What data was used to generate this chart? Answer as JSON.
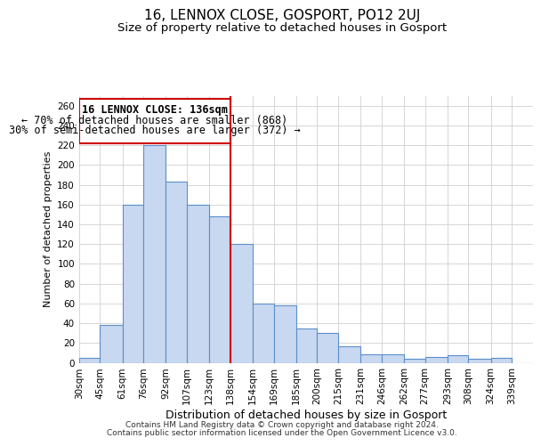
{
  "title": "16, LENNOX CLOSE, GOSPORT, PO12 2UJ",
  "subtitle": "Size of property relative to detached houses in Gosport",
  "xlabel": "Distribution of detached houses by size in Gosport",
  "ylabel": "Number of detached properties",
  "footer_line1": "Contains HM Land Registry data © Crown copyright and database right 2024.",
  "footer_line2": "Contains public sector information licensed under the Open Government Licence v3.0.",
  "annotation_line1": "16 LENNOX CLOSE: 136sqm",
  "annotation_line2": "← 70% of detached houses are smaller (868)",
  "annotation_line3": "30% of semi-detached houses are larger (372) →",
  "bar_color": "#c8d8f0",
  "bar_edge_color": "#5b8fc9",
  "ref_line_color": "#cc0000",
  "ref_line_x": 138,
  "background_color": "#ffffff",
  "grid_color": "#d0d0d0",
  "categories": [
    "30sqm",
    "45sqm",
    "61sqm",
    "76sqm",
    "92sqm",
    "107sqm",
    "123sqm",
    "138sqm",
    "154sqm",
    "169sqm",
    "185sqm",
    "200sqm",
    "215sqm",
    "231sqm",
    "246sqm",
    "262sqm",
    "277sqm",
    "293sqm",
    "308sqm",
    "324sqm",
    "339sqm"
  ],
  "bin_edges": [
    30,
    45,
    61,
    76,
    92,
    107,
    123,
    138,
    154,
    169,
    185,
    200,
    215,
    231,
    246,
    262,
    277,
    293,
    308,
    324,
    339,
    354
  ],
  "values": [
    5,
    38,
    160,
    220,
    183,
    160,
    148,
    120,
    60,
    58,
    35,
    30,
    17,
    9,
    9,
    4,
    6,
    8,
    4,
    5,
    0
  ],
  "ylim": [
    0,
    270
  ],
  "yticks": [
    0,
    20,
    40,
    60,
    80,
    100,
    120,
    140,
    160,
    180,
    200,
    220,
    240,
    260
  ],
  "title_fontsize": 11,
  "subtitle_fontsize": 9.5,
  "xlabel_fontsize": 9,
  "ylabel_fontsize": 8,
  "tick_fontsize": 7.5,
  "annotation_fontsize": 8.5,
  "footer_fontsize": 6.5
}
